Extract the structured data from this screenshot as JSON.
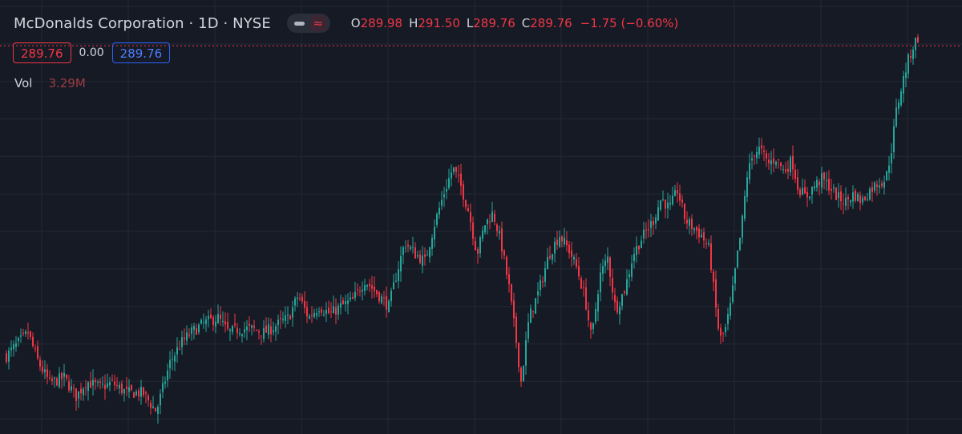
{
  "header": {
    "symbol_title": "McDonalds Corporation · 1D · NYSE",
    "toggle_icon": "wave-icon",
    "ohlc": {
      "open_label": "O",
      "open": "289.98",
      "high_label": "H",
      "high": "291.50",
      "low_label": "L",
      "low": "289.76",
      "close_label": "C",
      "close": "289.76",
      "change": "−1.75 (−0.60%)"
    }
  },
  "trade": {
    "sell_price": "289.76",
    "spread": "0.00",
    "buy_price": "289.76"
  },
  "volume": {
    "label": "Vol",
    "value": "3.29M"
  },
  "colors": {
    "background": "#161a25",
    "up": "#26a69a",
    "down": "#f23645",
    "grid": "#242833",
    "price_line": "#f23645"
  },
  "chart_data": {
    "type": "candlestick",
    "ylim": [
      238,
      295
    ],
    "last_price": 289.76,
    "grid": true,
    "close_path": [
      [
        0,
        247.5
      ],
      [
        20,
        249.8
      ],
      [
        35,
        251.5
      ],
      [
        48,
        247.5
      ],
      [
        62,
        244.8
      ],
      [
        80,
        245.5
      ],
      [
        95,
        243.0
      ],
      [
        108,
        245.0
      ],
      [
        125,
        244.2
      ],
      [
        140,
        244.8
      ],
      [
        158,
        243.5
      ],
      [
        178,
        243.5
      ],
      [
        195,
        241.0
      ],
      [
        212,
        247.5
      ],
      [
        225,
        250.0
      ],
      [
        238,
        251.5
      ],
      [
        255,
        252.8
      ],
      [
        272,
        253.5
      ],
      [
        285,
        251.5
      ],
      [
        298,
        252.0
      ],
      [
        315,
        252.0
      ],
      [
        330,
        251.5
      ],
      [
        345,
        252.5
      ],
      [
        360,
        253.5
      ],
      [
        372,
        256.5
      ],
      [
        385,
        253.5
      ],
      [
        398,
        255.0
      ],
      [
        412,
        254.0
      ],
      [
        425,
        255.0
      ],
      [
        440,
        255.8
      ],
      [
        455,
        258.5
      ],
      [
        470,
        256.8
      ],
      [
        485,
        255.0
      ],
      [
        495,
        259.5
      ],
      [
        505,
        263.5
      ],
      [
        518,
        262.0
      ],
      [
        530,
        261.0
      ],
      [
        542,
        266.0
      ],
      [
        555,
        270.5
      ],
      [
        565,
        273.5
      ],
      [
        575,
        271.0
      ],
      [
        585,
        267.5
      ],
      [
        595,
        262.0
      ],
      [
        605,
        266.0
      ],
      [
        615,
        267.5
      ],
      [
        625,
        263.5
      ],
      [
        635,
        257.5
      ],
      [
        645,
        249.5
      ],
      [
        650,
        245.0
      ],
      [
        660,
        253.5
      ],
      [
        672,
        257.0
      ],
      [
        685,
        262.0
      ],
      [
        698,
        264.5
      ],
      [
        710,
        262.5
      ],
      [
        720,
        260.0
      ],
      [
        730,
        256.0
      ],
      [
        738,
        250.5
      ],
      [
        748,
        259.0
      ],
      [
        758,
        261.5
      ],
      [
        768,
        254.5
      ],
      [
        780,
        257.5
      ],
      [
        790,
        262.0
      ],
      [
        800,
        264.0
      ],
      [
        815,
        266.5
      ],
      [
        825,
        269.5
      ],
      [
        835,
        268.0
      ],
      [
        845,
        270.5
      ],
      [
        855,
        266.5
      ],
      [
        865,
        265.5
      ],
      [
        875,
        264.5
      ],
      [
        885,
        262.5
      ],
      [
        892,
        255.5
      ],
      [
        898,
        250.5
      ],
      [
        905,
        252.0
      ],
      [
        912,
        255.5
      ],
      [
        918,
        260.5
      ],
      [
        925,
        265.5
      ],
      [
        932,
        272.5
      ],
      [
        940,
        275.5
      ],
      [
        948,
        276.0
      ],
      [
        958,
        274.0
      ],
      [
        968,
        274.8
      ],
      [
        978,
        273.0
      ],
      [
        988,
        274.5
      ],
      [
        995,
        271.0
      ],
      [
        1005,
        269.5
      ],
      [
        1015,
        271.0
      ],
      [
        1025,
        272.0
      ],
      [
        1035,
        271.0
      ],
      [
        1045,
        269.5
      ],
      [
        1055,
        269.0
      ],
      [
        1065,
        270.0
      ],
      [
        1075,
        269.0
      ],
      [
        1085,
        270.5
      ],
      [
        1095,
        271.5
      ],
      [
        1105,
        272.0
      ],
      [
        1112,
        276.0
      ],
      [
        1118,
        281.0
      ],
      [
        1125,
        284.5
      ],
      [
        1132,
        287.5
      ],
      [
        1140,
        290.0
      ],
      [
        1146,
        291.0
      ],
      [
        1148,
        289.76
      ]
    ]
  }
}
